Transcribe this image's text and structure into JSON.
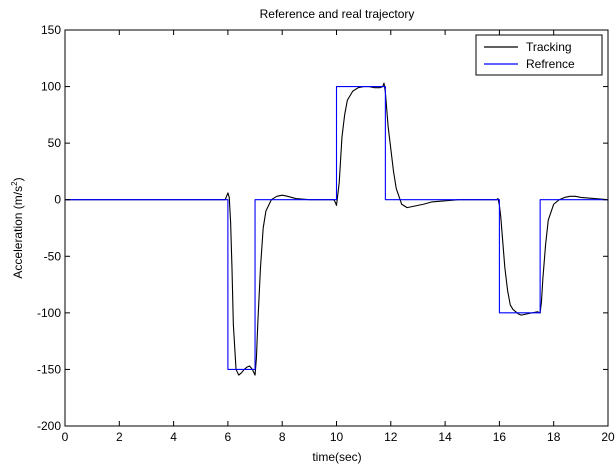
{
  "chart_data": {
    "type": "line",
    "title": "Reference and real trajectory",
    "xlabel": "time(sec)",
    "ylabel": "Acceleration (m/s",
    "ylabel_sup": "2",
    "ylabel_close": ")",
    "xlim": [
      0,
      20
    ],
    "ylim": [
      -200,
      150
    ],
    "xticks": [
      0,
      2,
      4,
      6,
      8,
      10,
      12,
      14,
      16,
      18,
      20
    ],
    "yticks": [
      -200,
      -150,
      -100,
      -50,
      0,
      50,
      100,
      150
    ],
    "grid": false,
    "legend_position": "top-right",
    "series": [
      {
        "name": "Tracking",
        "color": "#000000",
        "x": [
          0,
          5.9,
          5.95,
          6.0,
          6.05,
          6.1,
          6.15,
          6.2,
          6.3,
          6.4,
          6.5,
          6.6,
          6.7,
          6.8,
          6.9,
          7.0,
          7.05,
          7.1,
          7.2,
          7.3,
          7.4,
          7.6,
          7.8,
          8.0,
          8.2,
          8.5,
          9.0,
          9.5,
          9.9,
          9.95,
          10.0,
          10.05,
          10.1,
          10.15,
          10.2,
          10.3,
          10.4,
          10.6,
          10.8,
          11.0,
          11.2,
          11.4,
          11.6,
          11.7,
          11.75,
          11.8,
          11.85,
          11.9,
          12.0,
          12.1,
          12.2,
          12.4,
          12.6,
          12.8,
          13.0,
          13.2,
          13.5,
          14.0,
          14.5,
          15.0,
          15.9,
          15.95,
          16.0,
          16.05,
          16.1,
          16.2,
          16.3,
          16.4,
          16.5,
          16.6,
          16.7,
          16.8,
          17.0,
          17.2,
          17.4,
          17.5,
          17.55,
          17.6,
          17.7,
          17.8,
          18.0,
          18.2,
          18.4,
          18.6,
          18.8,
          19.0,
          19.5,
          20.0
        ],
        "y": [
          0,
          0,
          3,
          6,
          2,
          -20,
          -60,
          -110,
          -150,
          -155,
          -153,
          -150,
          -148,
          -147,
          -150,
          -155,
          -140,
          -110,
          -60,
          -25,
          -10,
          0,
          3,
          4,
          3,
          1,
          0,
          0,
          0,
          -2,
          -5,
          5,
          15,
          35,
          55,
          75,
          88,
          96,
          99,
          100,
          100,
          99,
          99,
          100,
          103,
          95,
          80,
          65,
          45,
          25,
          10,
          -4,
          -7,
          -6,
          -5,
          -4,
          -2,
          -1,
          0,
          0,
          0,
          1,
          -5,
          -15,
          -30,
          -60,
          -80,
          -93,
          -97,
          -99,
          -101,
          -102,
          -101,
          -100,
          -99,
          -100,
          -90,
          -70,
          -40,
          -18,
          -4,
          0,
          2,
          3,
          3,
          2,
          1,
          0
        ]
      },
      {
        "name": "Refrence",
        "color": "#0000ff",
        "x": [
          0,
          6,
          6,
          7,
          7,
          10,
          10,
          11.8,
          11.8,
          16,
          16,
          17.5,
          17.5,
          20
        ],
        "y": [
          0,
          0,
          -150,
          -150,
          0,
          0,
          100,
          100,
          0,
          0,
          -100,
          -100,
          0,
          0
        ]
      }
    ]
  }
}
